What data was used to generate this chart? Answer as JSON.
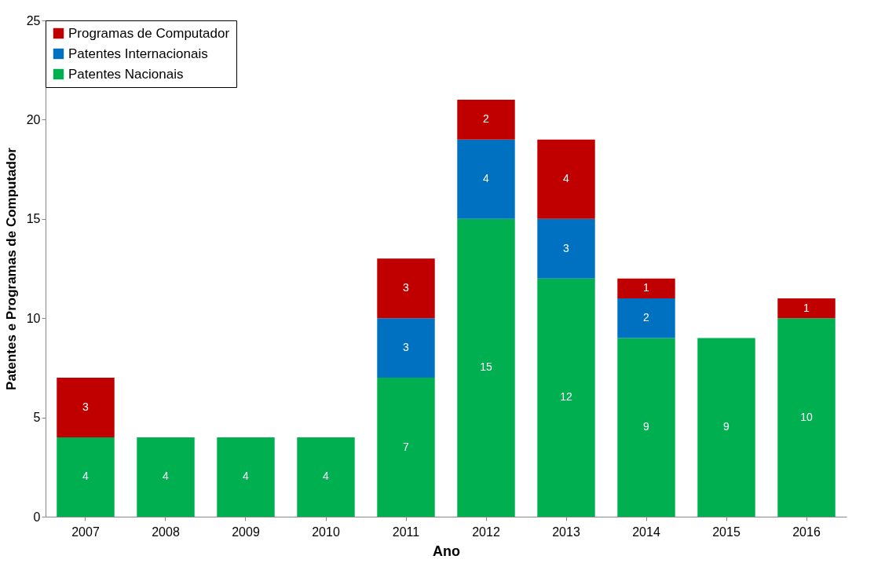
{
  "chart_data": {
    "type": "bar",
    "stacked": true,
    "xlabel": "Ano",
    "ylabel": "Patentes e Programas de Computador",
    "categories": [
      "2007",
      "2008",
      "2009",
      "2010",
      "2011",
      "2012",
      "2013",
      "2014",
      "2015",
      "2016"
    ],
    "series": [
      {
        "name": "Patentes Nacionais",
        "color": "#00b050",
        "values": [
          4,
          4,
          4,
          4,
          7,
          15,
          12,
          9,
          9,
          10
        ]
      },
      {
        "name": "Patentes Internacionais",
        "color": "#0070c0",
        "values": [
          null,
          null,
          null,
          null,
          3,
          4,
          3,
          2,
          null,
          null
        ]
      },
      {
        "name": "Programas de Computador",
        "color": "#c00000",
        "values": [
          3,
          null,
          null,
          null,
          3,
          2,
          4,
          1,
          null,
          1
        ]
      }
    ],
    "ylim": [
      0,
      25
    ],
    "yticks": [
      0,
      5,
      10,
      15,
      20,
      25
    ],
    "grid": false,
    "legend": "top left",
    "data_labels": true
  }
}
